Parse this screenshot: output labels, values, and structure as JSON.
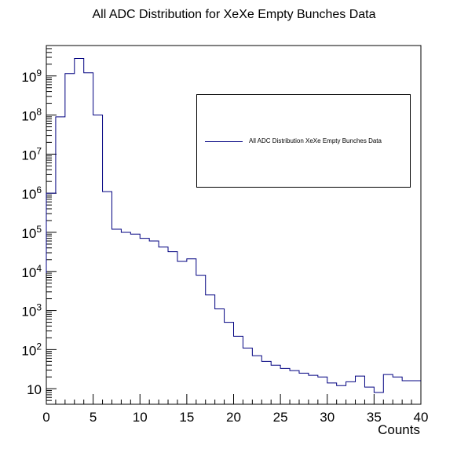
{
  "chart_data": {
    "type": "histogram",
    "title": "All ADC Distribution for XeXe Empty Bunches Data",
    "xlabel": "Counts",
    "ylabel": "",
    "xlim": [
      0,
      40
    ],
    "ylim": [
      4,
      6000000000
    ],
    "yscale": "log",
    "x_ticks": [
      0,
      5,
      10,
      15,
      20,
      25,
      30,
      35,
      40
    ],
    "x_tick_labels": [
      "0",
      "5",
      "10",
      "15",
      "20",
      "25",
      "30",
      "35",
      "40"
    ],
    "y_ticks": [
      10,
      100,
      1000,
      10000,
      100000,
      1000000,
      10000000,
      100000000,
      1000000000
    ],
    "y_tick_labels": [
      {
        "base": "10",
        "exp": ""
      },
      {
        "base": "10",
        "exp": "2"
      },
      {
        "base": "10",
        "exp": "3"
      },
      {
        "base": "10",
        "exp": "4"
      },
      {
        "base": "10",
        "exp": "5"
      },
      {
        "base": "10",
        "exp": "6"
      },
      {
        "base": "10",
        "exp": "7"
      },
      {
        "base": "10",
        "exp": "8"
      },
      {
        "base": "10",
        "exp": "9"
      }
    ],
    "grid": false,
    "legend_position": "top-right",
    "series": [
      {
        "name": "All ADC Distribution XeXe Empty Bunches Data",
        "color": "#000080",
        "bin_edges": [
          0,
          1,
          2,
          3,
          4,
          5,
          6,
          7,
          8,
          9,
          10,
          11,
          12,
          13,
          14,
          15,
          16,
          17,
          18,
          19,
          20,
          21,
          22,
          23,
          24,
          25,
          26,
          27,
          28,
          29,
          30,
          31,
          32,
          33,
          34,
          35,
          36,
          37,
          38,
          39,
          40
        ],
        "values": [
          1000000,
          90000000,
          1150000000,
          2800000000,
          1200000000,
          100000000,
          1100000,
          120000,
          100000,
          90000,
          70000,
          60000,
          42000,
          32000,
          18000,
          21000,
          8000,
          2500,
          1100,
          500,
          220,
          110,
          70,
          50,
          40,
          33,
          29,
          25,
          22,
          20,
          14,
          12,
          15,
          21,
          11,
          8,
          23,
          20,
          16,
          16
        ],
        "low_edge_value": 9000
      }
    ]
  }
}
